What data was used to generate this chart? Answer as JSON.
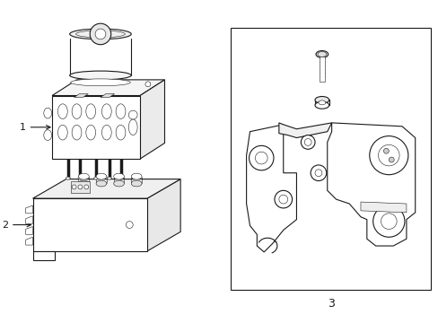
{
  "bg_color": "#ffffff",
  "line_color": "#1a1a1a",
  "line_width": 0.8,
  "thin_line": 0.4,
  "fig_width": 4.89,
  "fig_height": 3.6,
  "dpi": 100,
  "label1_text": "1",
  "label2_text": "2",
  "label3_text": "3"
}
